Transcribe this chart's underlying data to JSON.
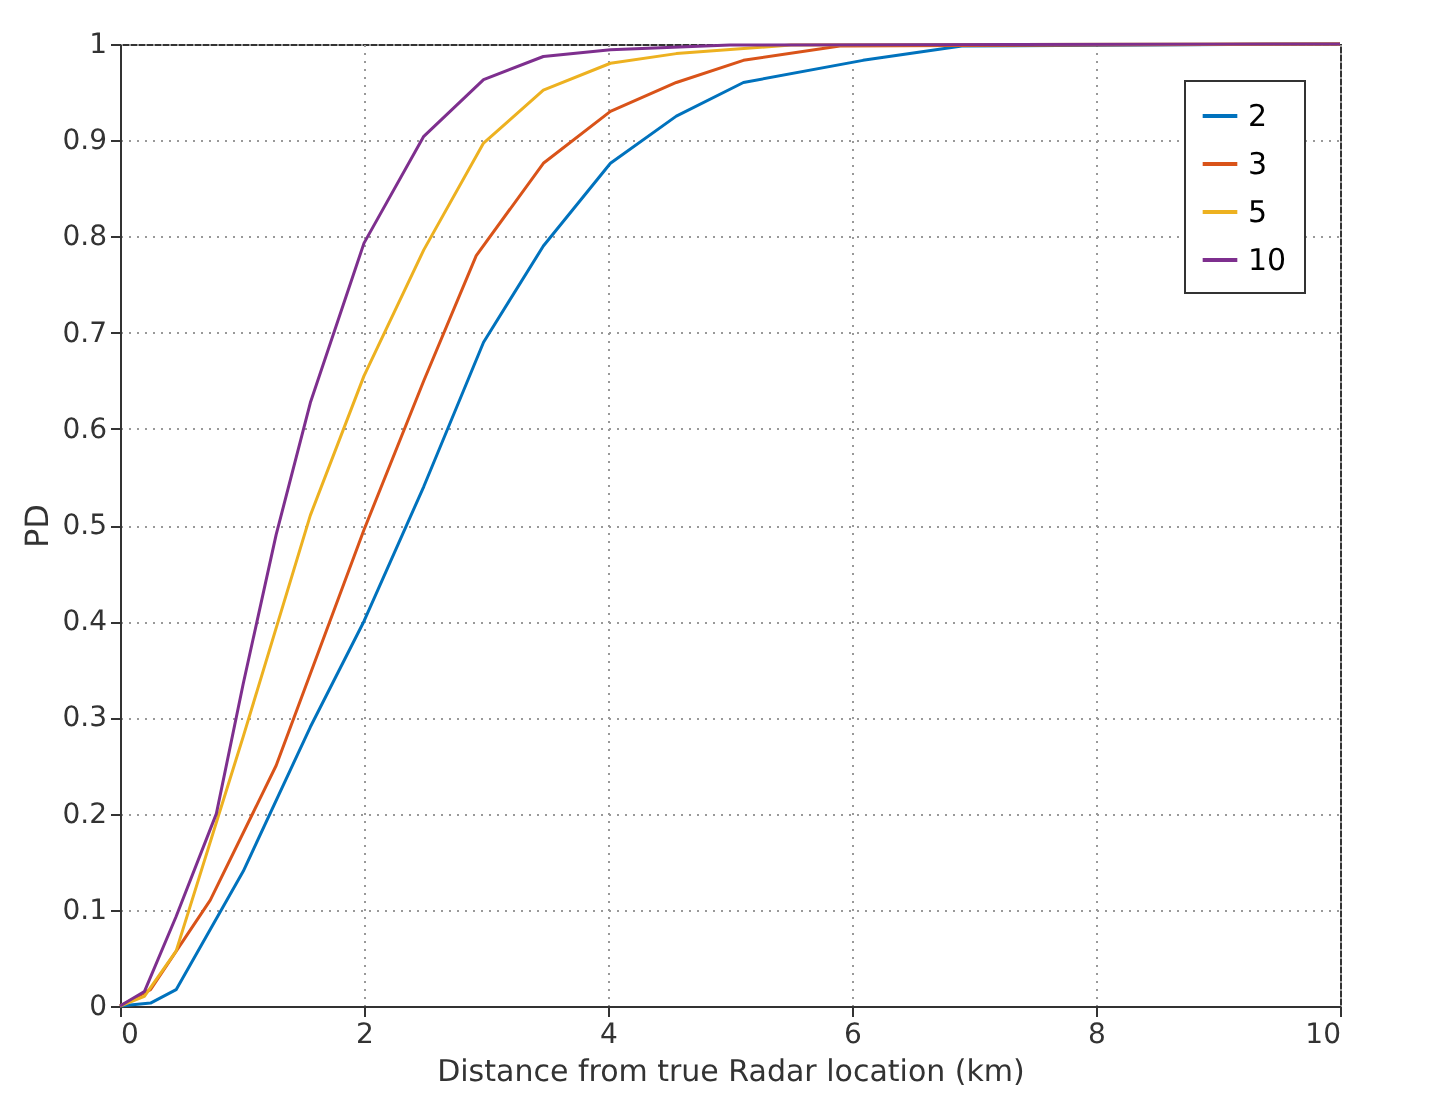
{
  "chart_data": {
    "type": "line",
    "xlabel": "Distance from true Radar location (km)",
    "ylabel": "PD",
    "xlim": [
      0,
      10
    ],
    "ylim": [
      0,
      1
    ],
    "xticks": [
      0,
      2,
      4,
      6,
      8,
      10
    ],
    "yticks": [
      0,
      0.1,
      0.2,
      0.3,
      0.4,
      0.5,
      0.6,
      0.7,
      0.8,
      0.9,
      1
    ],
    "grid": true,
    "legend": "top right",
    "line_style": "solid",
    "marker": "none",
    "series": [
      {
        "name": "2",
        "color": "#0072bd",
        "x": [
          0,
          0.25,
          0.46,
          1.01,
          1.56,
          2.0,
          2.49,
          2.98,
          3.47,
          4.02,
          4.56,
          5.11,
          6.09,
          6.9,
          10
        ],
        "values": [
          0,
          0.003,
          0.017,
          0.14,
          0.29,
          0.4,
          0.54,
          0.69,
          0.79,
          0.876,
          0.925,
          0.96,
          0.983,
          0.998,
          1
        ]
      },
      {
        "name": "3",
        "color": "#d95319",
        "x": [
          0,
          0.25,
          0.74,
          1.28,
          2.0,
          2.49,
          2.92,
          3.47,
          4.02,
          4.56,
          5.11,
          5.9,
          10
        ],
        "values": [
          0,
          0.017,
          0.11,
          0.25,
          0.495,
          0.65,
          0.78,
          0.876,
          0.93,
          0.96,
          0.983,
          0.998,
          1
        ]
      },
      {
        "name": "5",
        "color": "#edb120",
        "x": [
          0,
          0.2,
          0.46,
          1.01,
          1.56,
          2.0,
          2.49,
          2.98,
          3.47,
          4.02,
          4.56,
          5.5,
          10
        ],
        "values": [
          0,
          0.01,
          0.057,
          0.28,
          0.51,
          0.655,
          0.786,
          0.897,
          0.952,
          0.98,
          0.99,
          0.999,
          1
        ]
      },
      {
        "name": "10",
        "color": "#7e2f8e",
        "x": [
          0,
          0.2,
          0.46,
          0.79,
          1.01,
          1.28,
          1.56,
          2.0,
          2.49,
          2.98,
          3.47,
          4.02,
          5.0,
          10
        ],
        "values": [
          0,
          0.015,
          0.093,
          0.2,
          0.335,
          0.49,
          0.627,
          0.793,
          0.904,
          0.963,
          0.987,
          0.994,
          0.999,
          1
        ]
      }
    ]
  }
}
